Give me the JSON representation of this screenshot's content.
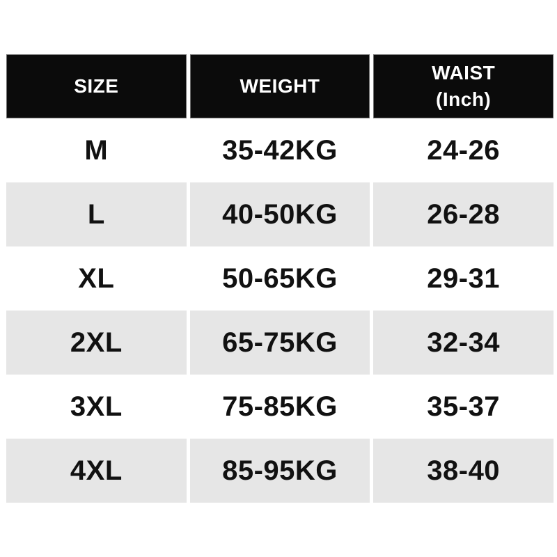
{
  "colors": {
    "header_bg": "#0b0b0b",
    "header_text": "#ffffff",
    "row_bg": "#ffffff",
    "row_alt_bg": "#e6e6e6",
    "text": "#111111",
    "page_bg": "#ffffff"
  },
  "chart_data": {
    "type": "table",
    "title": "",
    "headers": {
      "size": "SIZE",
      "weight": "WEIGHT",
      "waist_line1": "WAIST",
      "waist_line2": "(Inch)"
    },
    "columns": [
      "SIZE",
      "WEIGHT",
      "WAIST (Inch)"
    ],
    "rows": [
      {
        "size": "M",
        "weight": "35-42KG",
        "waist": "24-26"
      },
      {
        "size": "L",
        "weight": "40-50KG",
        "waist": "26-28"
      },
      {
        "size": "XL",
        "weight": "50-65KG",
        "waist": "29-31"
      },
      {
        "size": "2XL",
        "weight": "65-75KG",
        "waist": "32-34"
      },
      {
        "size": "3XL",
        "weight": "75-85KG",
        "waist": "35-37"
      },
      {
        "size": "4XL",
        "weight": "85-95KG",
        "waist": "38-40"
      }
    ]
  }
}
